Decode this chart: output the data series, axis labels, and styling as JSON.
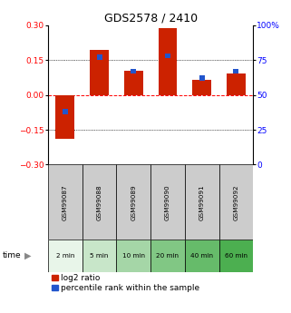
{
  "title": "GDS2578 / 2410",
  "samples": [
    "GSM99087",
    "GSM99088",
    "GSM99089",
    "GSM99090",
    "GSM99091",
    "GSM99092"
  ],
  "time_labels": [
    "2 min",
    "5 min",
    "10 min",
    "20 min",
    "40 min",
    "60 min"
  ],
  "log2_ratio": [
    -0.19,
    0.195,
    0.105,
    0.285,
    0.065,
    0.09
  ],
  "percentile_rank": [
    38,
    77,
    67,
    78,
    62,
    67
  ],
  "ylim_left": [
    -0.3,
    0.3
  ],
  "ylim_right": [
    0,
    100
  ],
  "yticks_left": [
    -0.3,
    -0.15,
    0,
    0.15,
    0.3
  ],
  "yticks_right": [
    0,
    25,
    50,
    75,
    100
  ],
  "bar_color": "#cc2200",
  "rank_color": "#2255cc",
  "title_fontsize": 9,
  "tick_fontsize": 6.5,
  "legend_fontsize": 6.5,
  "bar_width": 0.55,
  "rank_bar_width": 0.16,
  "time_colors": [
    "#e8f5e9",
    "#c8e6c9",
    "#a5d6a7",
    "#81c784",
    "#66bb6a",
    "#4caf50"
  ],
  "gsm_bg_color": "#cccccc",
  "white_bg": "#ffffff"
}
